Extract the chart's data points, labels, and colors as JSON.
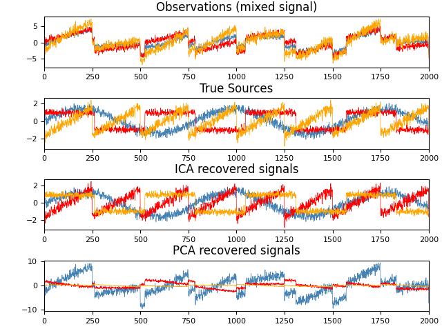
{
  "titles": [
    "Observations (mixed signal)",
    "True Sources",
    "ICA recovered signals",
    "PCA recovered signals"
  ],
  "n_samples": 2000,
  "colors": [
    "steelblue",
    "red",
    "orange"
  ],
  "figsize": [
    6.4,
    4.8
  ],
  "dpi": 100,
  "random_state": 0
}
